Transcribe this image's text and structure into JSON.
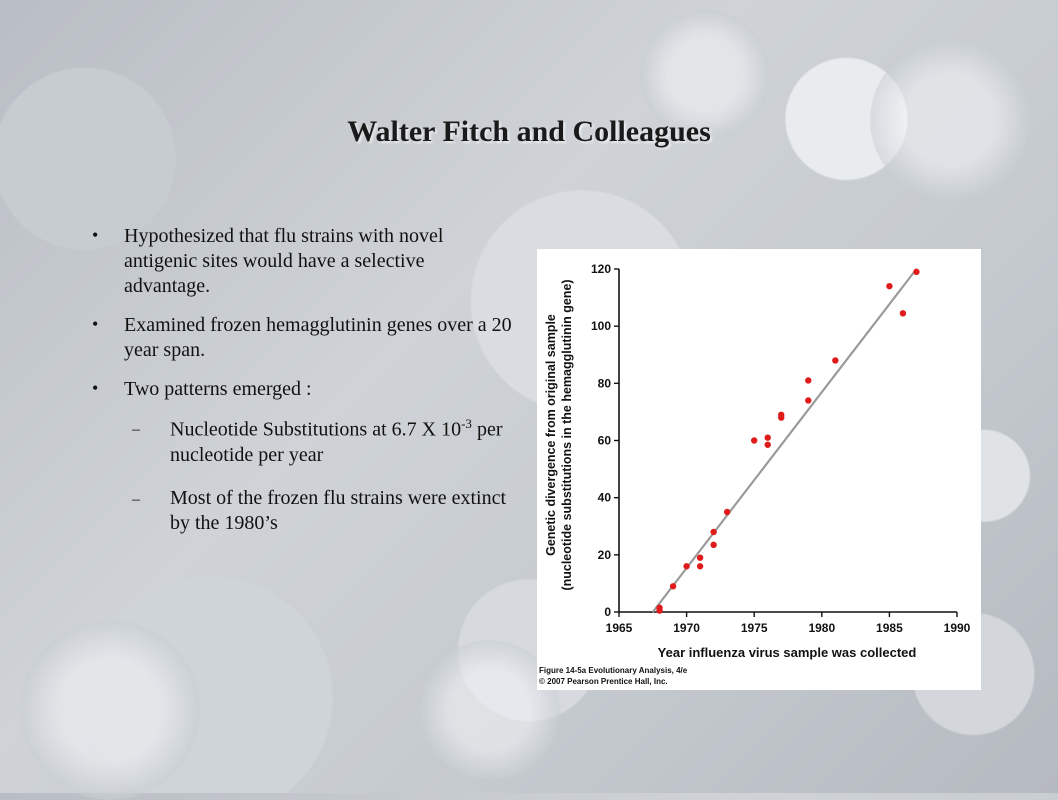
{
  "slide": {
    "title": "Walter Fitch and Colleagues",
    "bullets": [
      {
        "text": "Hypothesized that flu strains with novel antigenic sites would have a selective advantage."
      },
      {
        "text": "Examined frozen hemagglutinin genes over a 20 year span."
      },
      {
        "text": "Two patterns emerged :"
      }
    ],
    "subbullets": [
      {
        "pre": "Nucleotide Substitutions at  6.7 X 10",
        "sup": "-3",
        "post": " per nucleotide per year"
      },
      {
        "text": "Most of the frozen flu strains were extinct by the 1980’s"
      }
    ],
    "bullet_glyph": "•",
    "sub_glyph": "–"
  },
  "chart_data": {
    "type": "scatter",
    "xlabel": "Year influenza virus sample was collected",
    "ylabel_line1": "Genetic divergence from original sample",
    "ylabel_line2": "(nucleotide substitutions in the hemagglutinin gene)",
    "xlim": [
      1965,
      1990
    ],
    "ylim": [
      0,
      120
    ],
    "xticks": [
      1965,
      1970,
      1975,
      1980,
      1985,
      1990
    ],
    "yticks": [
      0,
      20,
      40,
      60,
      80,
      100,
      120
    ],
    "point_color": "#e01b1b",
    "line_color": "#9a9a9a",
    "regression_line": [
      [
        1967.5,
        0
      ],
      [
        1987,
        120
      ]
    ],
    "points": [
      [
        1968,
        0.5
      ],
      [
        1968,
        1.5
      ],
      [
        1969,
        9
      ],
      [
        1970,
        16
      ],
      [
        1971,
        16
      ],
      [
        1971,
        19
      ],
      [
        1972,
        23.5
      ],
      [
        1972,
        28
      ],
      [
        1973,
        35
      ],
      [
        1975,
        60
      ],
      [
        1976,
        58.5
      ],
      [
        1976,
        61
      ],
      [
        1977,
        68
      ],
      [
        1977,
        69
      ],
      [
        1979,
        74
      ],
      [
        1979,
        81
      ],
      [
        1981,
        88
      ],
      [
        1985,
        114
      ],
      [
        1986,
        104.5
      ],
      [
        1987,
        119
      ]
    ],
    "caption_line1": "Figure 14-5a Evolutionary Analysis, 4/e",
    "caption_line2": "© 2007 Pearson Prentice Hall, Inc."
  }
}
